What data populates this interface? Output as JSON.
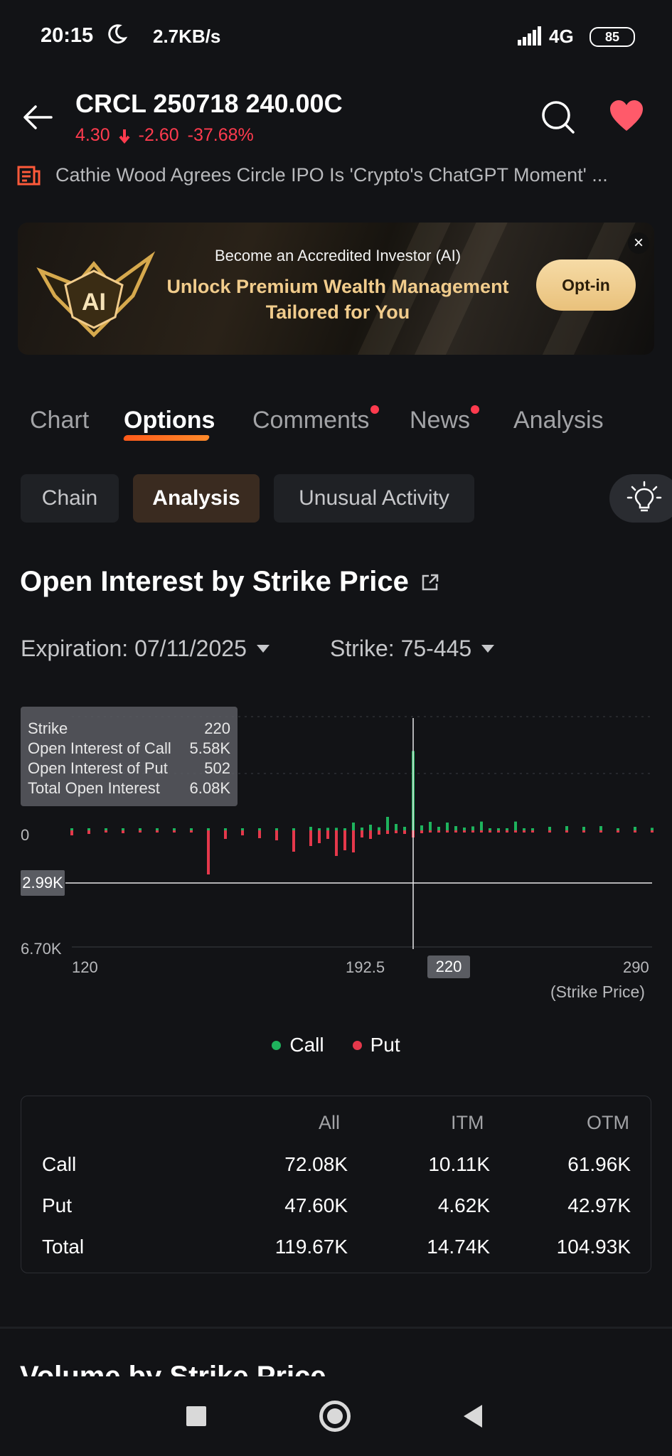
{
  "status_bar": {
    "time": "20:15",
    "net_speed": "2.7KB/s",
    "network": "4G",
    "battery": "85"
  },
  "header": {
    "title": "CRCL 250718 240.00C",
    "price": "4.30",
    "change": "-2.60",
    "change_pct": "-37.68%",
    "price_color": "#ff3b4e"
  },
  "news_ticker": {
    "text": "Cathie Wood Agrees Circle IPO Is 'Crypto's ChatGPT Moment' ..."
  },
  "banner": {
    "line1": "Become an Accredited Investor (AI)",
    "line2": "Unlock Premium Wealth Management",
    "line3": "Tailored for You",
    "cta": "Opt-in",
    "badge": "AI"
  },
  "tabs": [
    {
      "label": "Chart",
      "active": false,
      "dot": false
    },
    {
      "label": "Options",
      "active": true,
      "dot": false
    },
    {
      "label": "Comments",
      "active": false,
      "dot": true
    },
    {
      "label": "News",
      "active": false,
      "dot": true
    },
    {
      "label": "Analysis",
      "active": false,
      "dot": false
    }
  ],
  "sub_tabs": [
    {
      "label": "Chain",
      "active": false
    },
    {
      "label": "Analysis",
      "active": true
    },
    {
      "label": "Unusual Activity",
      "active": false
    }
  ],
  "section": {
    "title": "Open Interest by Strike Price"
  },
  "filters": {
    "expiration": "Expiration: 07/11/2025",
    "strike": "Strike: 75-445"
  },
  "tooltip": {
    "rows": [
      {
        "label": "Strike",
        "value": "220"
      },
      {
        "label": "Open Interest of Call",
        "value": "5.58K"
      },
      {
        "label": "Open Interest of Put",
        "value": "502"
      },
      {
        "label": "Total Open Interest",
        "value": "6.08K"
      }
    ]
  },
  "chart_data": {
    "type": "bar",
    "x_ticks": [
      "120",
      "192.5",
      "220",
      "290"
    ],
    "x_unit": "(Strike Price)",
    "y_ticks": [
      "0",
      "6.70K"
    ],
    "crosshair_y_label": "2.99K",
    "crosshair_x_label": "220",
    "xlim": [
      120,
      290
    ],
    "colors": {
      "call": "#1fb35d",
      "put": "#e5384b"
    },
    "series": [
      {
        "name": "Call",
        "x": [
          120,
          125,
          130,
          135,
          140,
          145,
          150,
          155,
          160,
          165,
          170,
          175,
          180,
          185,
          190,
          192.5,
          195,
          197.5,
          200,
          202.5,
          205,
          207.5,
          210,
          212.5,
          215,
          217.5,
          220,
          222.5,
          225,
          227.5,
          230,
          232.5,
          235,
          237.5,
          240,
          242.5,
          245,
          247.5,
          250,
          252.5,
          255,
          260,
          265,
          270,
          275,
          280,
          285,
          290
        ],
        "values": [
          0.01,
          0.01,
          0.01,
          0.01,
          0.01,
          0.01,
          0.01,
          0.01,
          0.15,
          0.05,
          0.03,
          0.05,
          0.08,
          0.05,
          0.25,
          0.15,
          0.18,
          0.18,
          0.1,
          0.55,
          0.2,
          0.4,
          0.22,
          0.95,
          0.45,
          0.25,
          5.58,
          0.35,
          0.6,
          0.25,
          0.55,
          0.3,
          0.2,
          0.28,
          0.62,
          0.12,
          0.1,
          0.08,
          0.62,
          0.12,
          0.1,
          0.25,
          0.3,
          0.25,
          0.3,
          0.15,
          0.25,
          0.18
        ]
      },
      {
        "name": "Put",
        "x": [
          120,
          125,
          130,
          135,
          140,
          145,
          150,
          155,
          160,
          165,
          170,
          175,
          180,
          185,
          190,
          192.5,
          195,
          197.5,
          200,
          202.5,
          205,
          207.5,
          210,
          212.5,
          215,
          217.5,
          220,
          222.5,
          225,
          227.5,
          230,
          232.5,
          235,
          237.5,
          240,
          242.5,
          245,
          247.5,
          250,
          252.5,
          255,
          260,
          265,
          270,
          275,
          280,
          285,
          290
        ],
        "values": [
          0.35,
          0.25,
          0.15,
          0.2,
          0.1,
          0.15,
          0.1,
          0.1,
          3.1,
          0.6,
          0.35,
          0.55,
          0.7,
          1.5,
          1.1,
          0.9,
          0.6,
          1.8,
          1.4,
          1.55,
          0.5,
          0.6,
          0.3,
          0.25,
          0.2,
          0.25,
          0.5,
          0.2,
          0.15,
          0.12,
          0.1,
          0.08,
          0.1,
          0.08,
          0.07,
          0.05,
          0.05,
          0.05,
          0.05,
          0.04,
          0.04,
          0.04,
          0.04,
          0.04,
          0.04,
          0.04,
          0.04,
          0.04
        ]
      }
    ]
  },
  "legend": [
    {
      "label": "Call",
      "color": "#1fb35d"
    },
    {
      "label": "Put",
      "color": "#e5384b"
    }
  ],
  "summary_table": {
    "headers": [
      "All",
      "ITM",
      "OTM"
    ],
    "rows": [
      {
        "label": "Call",
        "all": "72.08K",
        "itm": "10.11K",
        "otm": "61.96K"
      },
      {
        "label": "Put",
        "all": "47.60K",
        "itm": "4.62K",
        "otm": "42.97K"
      },
      {
        "label": "Total",
        "all": "119.67K",
        "itm": "14.74K",
        "otm": "104.93K"
      }
    ]
  },
  "next_section": {
    "title": "Volume by Strike Price"
  }
}
